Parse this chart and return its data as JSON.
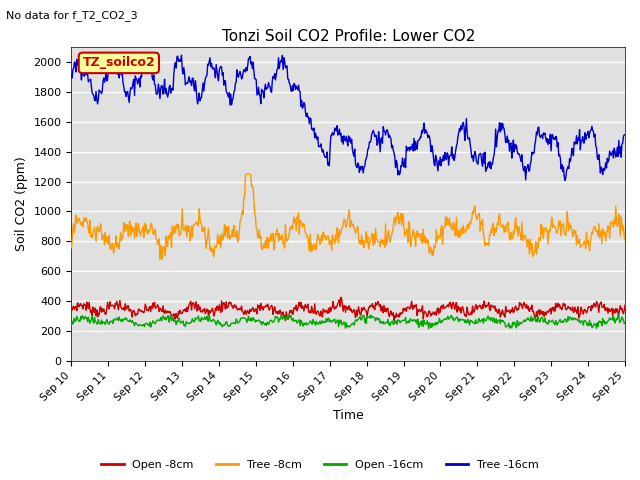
{
  "title": "Tonzi Soil CO2 Profile: Lower CO2",
  "subtitle": "No data for f_T2_CO2_3",
  "ylabel": "Soil CO2 (ppm)",
  "xlabel": "Time",
  "legend_box_label": "TZ_soilco2",
  "legend_entries": [
    "Open -8cm",
    "Tree -8cm",
    "Open -16cm",
    "Tree -16cm"
  ],
  "line_colors": [
    "#cc0000",
    "#ff9900",
    "#00aa00",
    "#0000cc"
  ],
  "ylim": [
    0,
    2100
  ],
  "yticks": [
    0,
    200,
    400,
    600,
    800,
    1000,
    1200,
    1400,
    1600,
    1800,
    2000
  ],
  "xticklabels": [
    "Sep 10",
    "Sep 11",
    "Sep 12",
    "Sep 13",
    "Sep 14",
    "Sep 15",
    "Sep 16",
    "Sep 17",
    "Sep 18",
    "Sep 19",
    "Sep 20",
    "Sep 21",
    "Sep 22",
    "Sep 23",
    "Sep 24",
    "Sep 25"
  ],
  "plot_bg_color": "#e0e0e0"
}
